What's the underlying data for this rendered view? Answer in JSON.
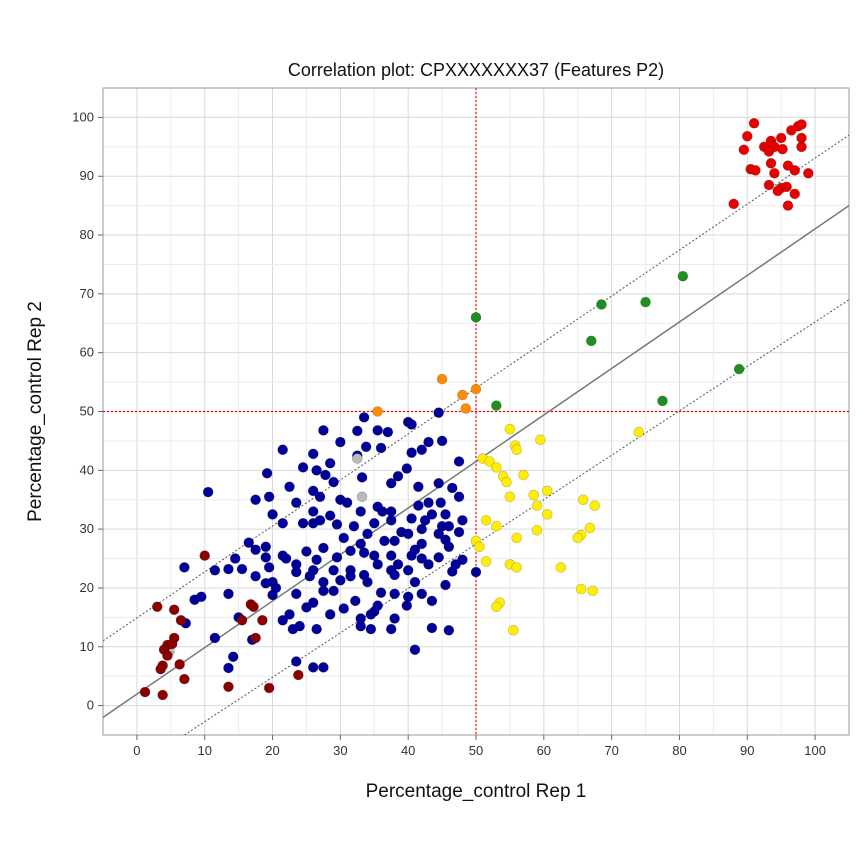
{
  "chart_data": {
    "type": "scatter",
    "title": "Correlation plot: CPXXXXXXX37 (Features P2)",
    "xlabel": "Percentage_control Rep 1",
    "ylabel": "Percentage_control Rep 2",
    "xlim": [
      -5,
      105
    ],
    "ylim": [
      -5,
      105
    ],
    "xticks": [
      "0",
      "10",
      "20",
      "30",
      "40",
      "50",
      "60",
      "70",
      "80",
      "90",
      "100"
    ],
    "yticks": [
      "0",
      "10",
      "20",
      "30",
      "40",
      "50",
      "60",
      "70",
      "80",
      "90",
      "100"
    ],
    "grid": true,
    "threshold_lines": {
      "x": 50,
      "y": 50,
      "color": "#ff0000"
    },
    "regression_line": {
      "points": [
        [
          -5,
          -2
        ],
        [
          105,
          85
        ]
      ],
      "color": "#777777"
    },
    "confidence_bands": [
      {
        "points": [
          [
            -5,
            11
          ],
          [
            105,
            97
          ]
        ],
        "color": "#555555"
      },
      {
        "points": [
          [
            7,
            -5
          ],
          [
            105,
            69
          ]
        ],
        "color": "#555555"
      }
    ],
    "series": [
      {
        "color": "#e60000",
        "points": [
          [
            91,
            99
          ],
          [
            97.5,
            98.5
          ],
          [
            98,
            98.8
          ],
          [
            96.5,
            97.8
          ],
          [
            90,
            96.8
          ],
          [
            95,
            96.5
          ],
          [
            93.5,
            96
          ],
          [
            98,
            96.5
          ],
          [
            92.5,
            95
          ],
          [
            94,
            95
          ],
          [
            98,
            95
          ],
          [
            89.5,
            94.5
          ],
          [
            93.2,
            94.2
          ],
          [
            95.2,
            94.6
          ],
          [
            93.5,
            92.2
          ],
          [
            96,
            91.8
          ],
          [
            90.5,
            91.2
          ],
          [
            91.2,
            91
          ],
          [
            94,
            90.5
          ],
          [
            97,
            91
          ],
          [
            99,
            90.5
          ],
          [
            93.2,
            88.5
          ],
          [
            95,
            88
          ],
          [
            95.8,
            88.2
          ],
          [
            94.5,
            87.5
          ],
          [
            97,
            87
          ],
          [
            96,
            85
          ],
          [
            88,
            85.3
          ]
        ]
      },
      {
        "color": "#1f8f1f",
        "points": [
          [
            50,
            66
          ],
          [
            80.5,
            73
          ],
          [
            68.5,
            68.2
          ],
          [
            75,
            68.6
          ],
          [
            67,
            62
          ],
          [
            88.8,
            57.2
          ],
          [
            53,
            51
          ],
          [
            77.5,
            51.8
          ]
        ]
      },
      {
        "color": "#ff8c00",
        "points": [
          [
            45,
            55.5
          ],
          [
            35.5,
            50
          ],
          [
            48,
            52.8
          ],
          [
            50,
            53.8
          ],
          [
            48.5,
            50.5
          ]
        ]
      },
      {
        "color": "#ffee00",
        "points": [
          [
            55,
            47
          ],
          [
            74,
            46.5
          ],
          [
            59.5,
            45.2
          ],
          [
            55.8,
            44.2
          ],
          [
            56,
            43.5
          ],
          [
            51,
            42
          ],
          [
            52,
            41.5
          ],
          [
            53,
            40.5
          ],
          [
            54,
            39
          ],
          [
            57,
            39.2
          ],
          [
            54.5,
            38
          ],
          [
            58.5,
            35.8
          ],
          [
            60.5,
            36.5
          ],
          [
            55,
            35.5
          ],
          [
            59,
            34
          ],
          [
            65.8,
            35
          ],
          [
            67.5,
            34
          ],
          [
            53,
            30.5
          ],
          [
            51.5,
            31.5
          ],
          [
            60.5,
            32.5
          ],
          [
            59,
            29.8
          ],
          [
            66.8,
            30.2
          ],
          [
            65.5,
            29
          ],
          [
            65,
            28.5
          ],
          [
            56,
            28.5
          ],
          [
            50,
            28
          ],
          [
            50.5,
            27
          ],
          [
            51.5,
            24.5
          ],
          [
            55,
            24
          ],
          [
            56,
            23.5
          ],
          [
            62.5,
            23.5
          ],
          [
            65.5,
            19.8
          ],
          [
            67.2,
            19.5
          ],
          [
            53.5,
            17.5
          ],
          [
            53,
            16.8
          ],
          [
            55.5,
            12.8
          ]
        ]
      },
      {
        "color": "#000099",
        "points": [
          [
            33.5,
            49
          ],
          [
            40,
            48.2
          ],
          [
            44.5,
            49.8
          ],
          [
            40.5,
            47.8
          ],
          [
            35.5,
            46.8
          ],
          [
            32.5,
            46.7
          ],
          [
            37,
            46.5
          ],
          [
            27.5,
            46.8
          ],
          [
            45,
            45
          ],
          [
            43,
            44.8
          ],
          [
            30,
            44.8
          ],
          [
            21.5,
            43.5
          ],
          [
            36,
            43.8
          ],
          [
            33.8,
            44
          ],
          [
            42,
            43.5
          ],
          [
            40.5,
            43
          ],
          [
            26,
            42.8
          ],
          [
            32.5,
            42.5
          ],
          [
            47.5,
            41.5
          ],
          [
            28.5,
            41.2
          ],
          [
            24.5,
            40.5
          ],
          [
            26.5,
            40
          ],
          [
            39.8,
            40.3
          ],
          [
            27.8,
            39.2
          ],
          [
            38.5,
            39
          ],
          [
            19.2,
            39.5
          ],
          [
            33.2,
            38.8
          ],
          [
            29,
            38
          ],
          [
            37.5,
            37.8
          ],
          [
            44.5,
            37.8
          ],
          [
            41.5,
            37.2
          ],
          [
            46.5,
            37
          ],
          [
            22.5,
            37.2
          ],
          [
            26,
            36.5
          ],
          [
            10.5,
            36.3
          ],
          [
            17.5,
            35
          ],
          [
            19.5,
            35.5
          ],
          [
            27,
            35.5
          ],
          [
            44.8,
            34.5
          ],
          [
            30,
            35
          ],
          [
            31,
            34.5
          ],
          [
            23.5,
            34.5
          ],
          [
            47.5,
            35.5
          ],
          [
            41.5,
            34
          ],
          [
            43,
            34.5
          ],
          [
            35.5,
            33.8
          ],
          [
            36.2,
            33
          ],
          [
            37.5,
            33
          ],
          [
            33,
            33
          ],
          [
            26,
            33
          ],
          [
            20,
            32.5
          ],
          [
            28.5,
            32.3
          ],
          [
            43.5,
            32.5
          ],
          [
            45.5,
            32.5
          ],
          [
            42.5,
            31.5
          ],
          [
            37.5,
            31.5
          ],
          [
            40.5,
            31.8
          ],
          [
            27,
            31.5
          ],
          [
            24.5,
            31
          ],
          [
            29.5,
            30.8
          ],
          [
            26,
            31
          ],
          [
            35,
            31
          ],
          [
            21.5,
            31
          ],
          [
            32,
            30.5
          ],
          [
            45,
            30.5
          ],
          [
            46,
            30.5
          ],
          [
            48,
            31.5
          ],
          [
            42,
            30
          ],
          [
            39,
            29.5
          ],
          [
            34,
            29.2
          ],
          [
            44.5,
            29.2
          ],
          [
            40,
            29.2
          ],
          [
            30.5,
            28.5
          ],
          [
            47.5,
            29.5
          ],
          [
            36.5,
            28
          ],
          [
            38,
            28
          ],
          [
            45.5,
            28.2
          ],
          [
            16.5,
            27.7
          ],
          [
            33,
            27.5
          ],
          [
            42,
            27.5
          ],
          [
            19,
            27
          ],
          [
            46,
            27
          ],
          [
            27.5,
            26.8
          ],
          [
            41,
            26.5
          ],
          [
            31.5,
            26.3
          ],
          [
            17.5,
            26.5
          ],
          [
            25,
            26.2
          ],
          [
            40.5,
            25.5
          ],
          [
            33.5,
            26
          ],
          [
            21.5,
            25.5
          ],
          [
            35,
            25.5
          ],
          [
            19,
            25.2
          ],
          [
            44.5,
            25.2
          ],
          [
            37.5,
            25.5
          ],
          [
            29.5,
            25.2
          ],
          [
            14.5,
            25
          ],
          [
            42,
            25
          ],
          [
            22,
            25
          ],
          [
            26.5,
            24.8
          ],
          [
            48,
            24.8
          ],
          [
            38.5,
            24
          ],
          [
            47,
            24
          ],
          [
            23.5,
            24
          ],
          [
            35.5,
            24
          ],
          [
            43,
            24
          ],
          [
            19.5,
            23.5
          ],
          [
            26,
            23
          ],
          [
            31.5,
            23
          ],
          [
            13.5,
            23.2
          ],
          [
            15.5,
            23.2
          ],
          [
            7,
            23.5
          ],
          [
            11.5,
            23
          ],
          [
            29,
            23
          ],
          [
            37.5,
            23
          ],
          [
            40,
            23
          ],
          [
            46.5,
            22.8
          ],
          [
            23.5,
            22.7
          ],
          [
            50,
            22.7
          ],
          [
            31.5,
            22
          ],
          [
            17.5,
            22
          ],
          [
            25.5,
            22
          ],
          [
            33.5,
            22.2
          ],
          [
            38,
            22.2
          ],
          [
            20,
            21
          ],
          [
            19,
            20.8
          ],
          [
            41,
            21
          ],
          [
            30,
            21.3
          ],
          [
            27.5,
            21
          ],
          [
            34,
            21
          ],
          [
            45.5,
            20.5
          ],
          [
            20.5,
            20
          ],
          [
            29,
            19.5
          ],
          [
            36,
            19.2
          ],
          [
            23.5,
            19
          ],
          [
            27.5,
            19.5
          ],
          [
            38,
            19
          ],
          [
            42,
            19
          ],
          [
            13.5,
            19
          ],
          [
            20,
            18.8
          ],
          [
            9.5,
            18.5
          ],
          [
            40,
            18.5
          ],
          [
            32.2,
            17.8
          ],
          [
            8.5,
            18
          ],
          [
            43.5,
            17.8
          ],
          [
            26,
            17.5
          ],
          [
            35.5,
            17
          ],
          [
            39.8,
            17
          ],
          [
            25,
            16.7
          ],
          [
            30.5,
            16.5
          ],
          [
            35,
            16
          ],
          [
            34.5,
            15.5
          ],
          [
            28.5,
            15.5
          ],
          [
            22.5,
            15.5
          ],
          [
            15,
            15
          ],
          [
            38,
            14.8
          ],
          [
            33,
            14.8
          ],
          [
            21.5,
            14.5
          ],
          [
            7.2,
            14
          ],
          [
            33,
            13.5
          ],
          [
            24,
            13.5
          ],
          [
            26.5,
            13
          ],
          [
            37.5,
            13
          ],
          [
            43.5,
            13.2
          ],
          [
            23,
            13
          ],
          [
            34.5,
            13
          ],
          [
            46,
            12.8
          ],
          [
            11.5,
            11.5
          ],
          [
            17,
            11.2
          ],
          [
            41,
            9.5
          ],
          [
            14.2,
            8.3
          ],
          [
            23.5,
            7.5
          ],
          [
            27.5,
            6.5
          ],
          [
            26,
            6.5
          ],
          [
            13.5,
            6.4
          ]
        ]
      },
      {
        "color": "#bbbbbb",
        "points": [
          [
            32.5,
            42
          ],
          [
            33.2,
            35.5
          ],
          [
            4.8,
            9.2
          ]
        ]
      },
      {
        "color": "#8b0000",
        "points": [
          [
            10,
            25.5
          ],
          [
            3,
            16.8
          ],
          [
            5.5,
            16.3
          ],
          [
            16.8,
            17.2
          ],
          [
            17.2,
            16.8
          ],
          [
            18.5,
            14.5
          ],
          [
            6.5,
            14.5
          ],
          [
            15.5,
            14.5
          ],
          [
            5.5,
            11.5
          ],
          [
            17.5,
            11.5
          ],
          [
            4.5,
            10.3
          ],
          [
            5.2,
            10.5
          ],
          [
            4,
            9.5
          ],
          [
            4.5,
            8.5
          ],
          [
            6.3,
            7
          ],
          [
            3.8,
            6.8
          ],
          [
            3.5,
            6.2
          ],
          [
            7,
            4.5
          ],
          [
            13.5,
            3.2
          ],
          [
            19.5,
            3
          ],
          [
            23.8,
            5.2
          ],
          [
            1.2,
            2.3
          ],
          [
            3.8,
            1.8
          ]
        ]
      }
    ]
  }
}
